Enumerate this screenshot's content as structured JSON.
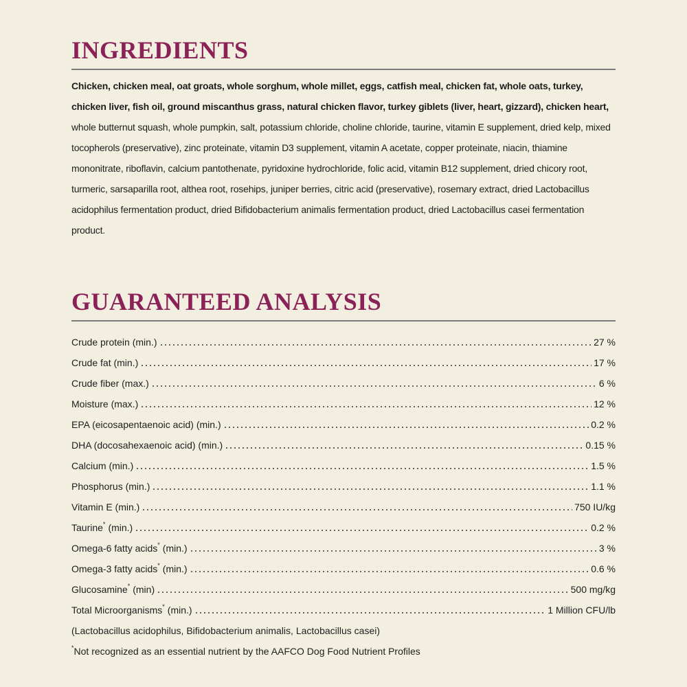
{
  "ingredients": {
    "title": "INGREDIENTS",
    "text_bold": "Chicken, chicken meal, oat groats, whole sorghum, whole millet, eggs, catfish meal, chicken fat, whole oats, turkey, chicken liver, fish oil, ground miscanthus grass, natural chicken flavor, turkey giblets (liver, heart, gizzard), chicken heart,",
    "text_regular": "whole butternut squash, whole pumpkin, salt, potassium chloride, choline chloride, taurine, vitamin E supplement, dried kelp, mixed tocopherols (preservative), zinc proteinate, vitamin D3 supplement, vitamin A acetate, copper proteinate, niacin, thiamine mononitrate, riboflavin, calcium pantothenate, pyridoxine hydrochloride, folic acid, vitamin B12 supplement, dried chicory root, turmeric, sarsaparilla root, althea root, rosehips, juniper berries, citric acid (preservative), rosemary extract, dried Lactobacillus acidophilus fermentation product, dried Bifidobacterium animalis fermentation product, dried Lactobacillus casei fermentation product."
  },
  "analysis": {
    "title": "GUARANTEED ANALYSIS",
    "rows": [
      {
        "label": "Crude protein (min.)",
        "value": "27 %"
      },
      {
        "label": "Crude fat (min.)",
        "value": "17 %"
      },
      {
        "label": "Crude fiber (max.)",
        "value": "6 %"
      },
      {
        "label": "Moisture (max.)",
        "value": "12 %"
      },
      {
        "label": "EPA (eicosapentaenoic acid) (min.)",
        "value": "0.2 %"
      },
      {
        "label": "DHA (docosahexaenoic acid) (min.)",
        "value": "0.15 %"
      },
      {
        "label": "Calcium (min.)",
        "value": "1.5 %"
      },
      {
        "label": "Phosphorus (min.)",
        "value": "1.1 %"
      },
      {
        "label": "Vitamin E (min.)",
        "value": "750 IU/kg"
      },
      {
        "label": "Taurine",
        "note_mark": "*",
        "qualifier": "(min.)",
        "value": "0.2 %"
      },
      {
        "label": "Omega-6 fatty acids",
        "note_mark": "*",
        "qualifier": "(min.)",
        "value": "3 %"
      },
      {
        "label": "Omega-3 fatty acids",
        "note_mark": "*",
        "qualifier": "(min.)",
        "value": "0.6 %"
      },
      {
        "label": "Glucosamine",
        "note_mark": "*",
        "qualifier": "(min)",
        "value": "500 mg/kg"
      },
      {
        "label": "Total Microorganisms",
        "note_mark": "*",
        "qualifier": "(min.)",
        "value": "1 Million CFU/lb"
      }
    ],
    "sub_note": "(Lactobacillus acidophilus, Bifidobacterium animalis, Lactobacillus casei)",
    "footnote_mark": "*",
    "footnote": "Not recognized as an essential nutrient by the AAFCO Dog Food Nutrient Profiles"
  }
}
